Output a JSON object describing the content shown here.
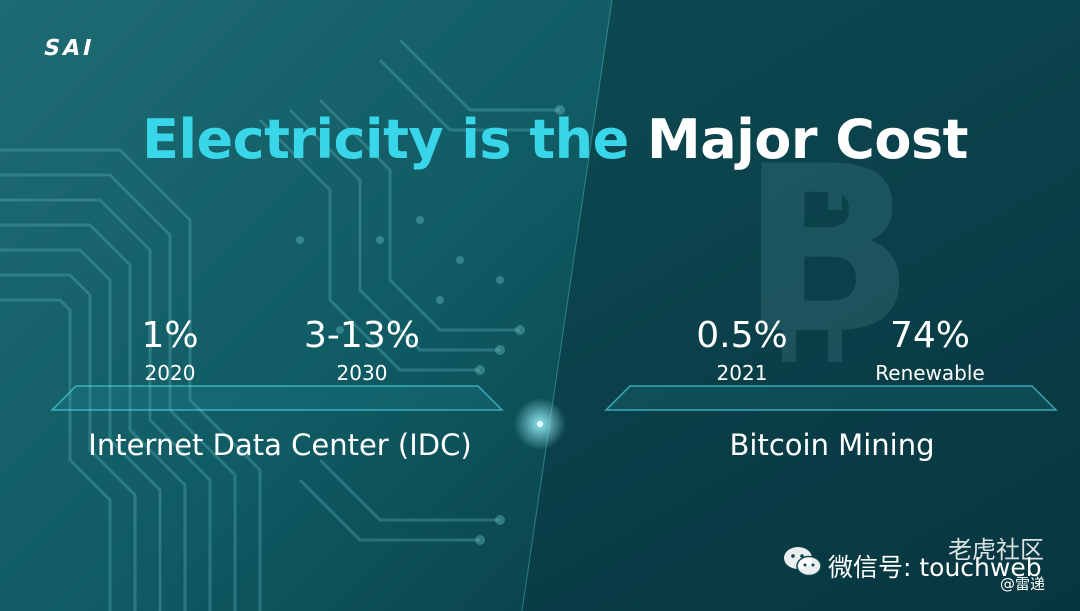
{
  "logo": "SAI",
  "title": {
    "accent": "Electricity is the",
    "plain": "Major Cost"
  },
  "left_group": {
    "label": "Internet Data Center (IDC)",
    "stats": [
      {
        "value": "1%",
        "caption": "2020"
      },
      {
        "value": "3-13%",
        "caption": "2030"
      }
    ]
  },
  "right_group": {
    "label": "Bitcoin Mining",
    "stats": [
      {
        "value": "0.5%",
        "caption": "2021"
      },
      {
        "value": "74%",
        "caption": "Renewable"
      }
    ]
  },
  "watermark": {
    "main": "微信号: touchweb",
    "community": "老虎社区",
    "author": "@雷递",
    "icon": "wechat-icon"
  },
  "colors": {
    "accent": "#39d6e9",
    "left_bg": "#0e5760",
    "right_bg": "#0c4650"
  }
}
